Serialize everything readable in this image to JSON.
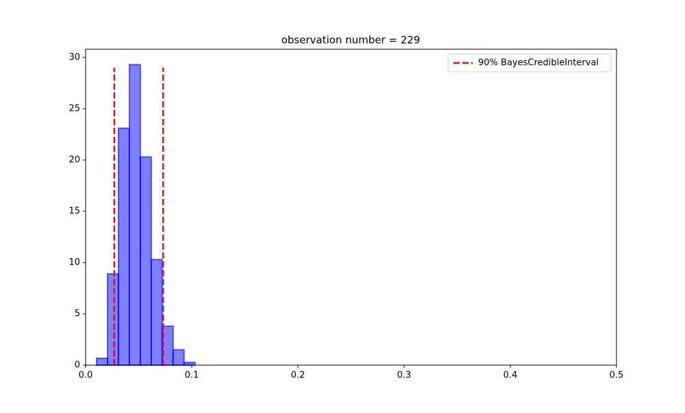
{
  "chart_data": {
    "type": "histogram",
    "title": "observation number = 229",
    "bins": [
      0.0103,
      0.0206,
      0.0309,
      0.0412,
      0.0515,
      0.0618,
      0.0721,
      0.0824,
      0.0927,
      0.103
    ],
    "values": [
      0.67,
      8.9,
      23.1,
      29.3,
      20.3,
      10.3,
      3.8,
      1.5,
      0.27
    ],
    "color": "#0000ff",
    "vlines": {
      "name": "90% BayesCredibleInterval",
      "color": "#ff0000",
      "x": [
        0.027,
        0.073
      ],
      "y": [
        0,
        29
      ]
    },
    "xlim": [
      0,
      0.5
    ],
    "xticks": [
      {
        "value": 0,
        "label": "0.0"
      },
      0.1,
      0.2,
      0.3,
      0.4,
      0.5
    ],
    "ylim": [
      0,
      30.8
    ],
    "yticks": [
      0,
      5,
      10,
      15,
      20,
      25,
      30
    ],
    "legend": "upper right"
  }
}
